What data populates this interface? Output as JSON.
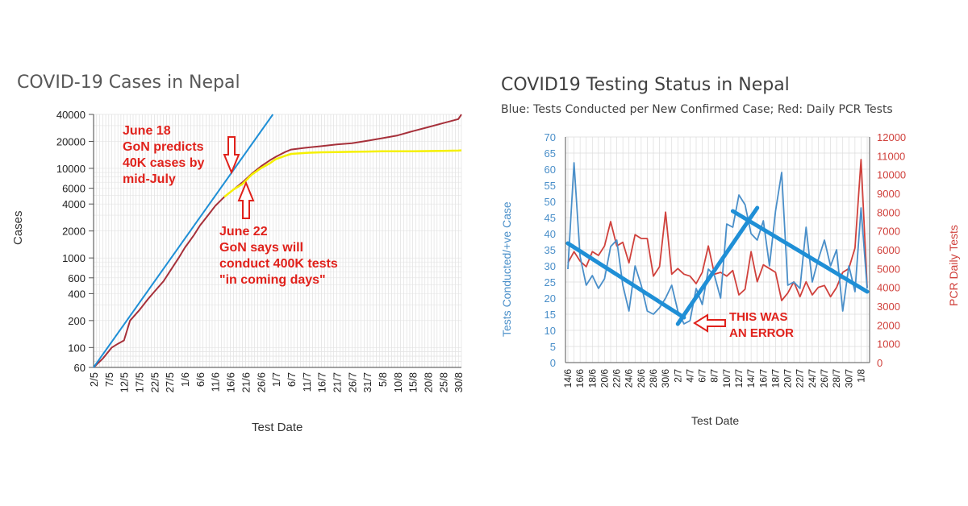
{
  "chart_data": [
    {
      "type": "line",
      "title": "COVID-19 Cases in Nepal",
      "xlabel": "Test Date",
      "ylabel": "Cases",
      "y_scale": "log",
      "ylim": [
        60,
        40000
      ],
      "grid": true,
      "y_ticks": [
        60,
        100,
        200,
        400,
        600,
        1000,
        2000,
        4000,
        6000,
        10000,
        20000,
        40000
      ],
      "x_ticks": [
        "2/5",
        "7/5",
        "12/5",
        "17/5",
        "22/5",
        "27/5",
        "1/6",
        "6/6",
        "11/6",
        "16/6",
        "21/6",
        "26/6",
        "1/7",
        "6/7",
        "11/7",
        "16/7",
        "21/7",
        "26/7",
        "31/7",
        "5/8",
        "10/8",
        "15/8",
        "20/8",
        "25/8",
        "30/8"
      ],
      "series": [
        {
          "color": "#a6303a",
          "x": [
            "2/5",
            "5/5",
            "8/5",
            "10/5",
            "12/5",
            "14/5",
            "17/5",
            "20/5",
            "22/5",
            "25/5",
            "27/5",
            "30/5",
            "1/6",
            "4/6",
            "6/6",
            "9/6",
            "11/6",
            "14/6",
            "17/6",
            "20/6",
            "23/6",
            "26/6",
            "29/6",
            "1/7",
            "4/7",
            "6/7",
            "11/7",
            "16/7",
            "21/7",
            "26/7",
            "31/7",
            "5/8",
            "10/8",
            "15/8",
            "20/8",
            "25/8",
            "30/8",
            "31/8"
          ],
          "values": [
            60,
            75,
            100,
            110,
            120,
            200,
            260,
            350,
            420,
            550,
            700,
            1000,
            1300,
            1800,
            2300,
            3100,
            3800,
            4800,
            5800,
            7000,
            8700,
            10500,
            12300,
            13500,
            15200,
            16200,
            17000,
            17700,
            18500,
            19100,
            20300,
            21700,
            23300,
            26000,
            28800,
            32000,
            35500,
            40000
          ]
        },
        {
          "color": "#f5f000",
          "x": [
            "14/6",
            "17/6",
            "20/6",
            "23/6",
            "26/6",
            "29/6",
            "1/7",
            "4/7",
            "6/7",
            "11/7",
            "16/7",
            "21/7",
            "26/7",
            "31/7",
            "5/8",
            "10/8",
            "15/8",
            "20/8",
            "25/8",
            "30/8",
            "31/8"
          ],
          "values": [
            4800,
            5800,
            6700,
            8500,
            10000,
            11400,
            12700,
            13800,
            14500,
            14900,
            15100,
            15200,
            15300,
            15400,
            15500,
            15500,
            15500,
            15600,
            15700,
            15800,
            15900
          ]
        },
        {
          "color": "#1f8fd6",
          "x": [
            "2/5",
            "30/6"
          ],
          "values": [
            60,
            40000
          ]
        }
      ],
      "annotations": [
        {
          "lines": [
            "June 18",
            "GoN predicts",
            "40K cases by",
            "mid-July"
          ]
        },
        {
          "lines": [
            "June 22",
            "GoN says will",
            "conduct 400K tests",
            "\"in coming days\""
          ]
        }
      ]
    },
    {
      "type": "line",
      "title": "COVID19 Testing Status in Nepal",
      "subtitle": "Blue: Tests Conducted per New Confirmed Case; Red: Daily PCR Tests",
      "xlabel": "Test Date",
      "ylabel": "Tests Conducted/+ve Case",
      "y2label": "PCR Daily Tests",
      "ylim": [
        0,
        70
      ],
      "y2lim": [
        0,
        12000
      ],
      "y_ticks": [
        0,
        5,
        10,
        15,
        20,
        25,
        30,
        35,
        40,
        45,
        50,
        55,
        60,
        65,
        70
      ],
      "y2_ticks": [
        0,
        1000,
        2000,
        3000,
        4000,
        5000,
        6000,
        7000,
        8000,
        9000,
        10000,
        11000,
        12000
      ],
      "x_ticks": [
        "14/6",
        "16/6",
        "18/6",
        "20/6",
        "22/6",
        "24/6",
        "26/6",
        "28/6",
        "30/6",
        "2/7",
        "4/7",
        "6/7",
        "8/7",
        "10/7",
        "12/7",
        "14/7",
        "16/7",
        "18/7",
        "20/7",
        "22/7",
        "24/7",
        "26/7",
        "28/7",
        "30/7",
        "1/8"
      ],
      "series": [
        {
          "name": "Tests Conducted per New Confirmed Case",
          "color": "#4a8fc9",
          "axis": "left",
          "values": [
            29,
            62,
            33,
            24,
            27,
            23,
            26,
            36,
            38,
            24,
            16,
            30,
            24,
            16,
            15,
            17,
            20,
            24,
            16,
            12,
            13,
            23,
            18,
            29,
            27,
            20,
            43,
            42,
            52,
            49,
            40,
            38,
            44,
            30,
            47,
            59,
            24,
            25,
            23,
            42,
            25,
            32,
            38,
            30,
            35,
            16,
            30,
            22,
            48,
            23
          ]
        },
        {
          "name": "Daily PCR Tests",
          "color": "#d0413c",
          "axis": "right",
          "values": [
            5300,
            5900,
            5400,
            5100,
            5900,
            5700,
            6200,
            7500,
            6200,
            6400,
            5300,
            6800,
            6600,
            6600,
            4600,
            5100,
            8000,
            4700,
            5000,
            4700,
            4600,
            4200,
            4800,
            6200,
            4700,
            4800,
            4600,
            4900,
            3600,
            3900,
            5900,
            4300,
            5200,
            5000,
            4800,
            3300,
            3700,
            4300,
            3500,
            4300,
            3600,
            4000,
            4100,
            3500,
            4000,
            4800,
            5000,
            6100,
            10800,
            4000
          ]
        },
        {
          "color": "#1f8fd6",
          "axis": "left",
          "x_index": [
            0,
            19
          ],
          "values": [
            37,
            14
          ]
        },
        {
          "color": "#1f8fd6",
          "axis": "left",
          "x_index": [
            18,
            31
          ],
          "values": [
            12,
            48
          ]
        },
        {
          "color": "#1f8fd6",
          "axis": "left",
          "x_index": [
            27,
            49
          ],
          "values": [
            47,
            22
          ]
        }
      ],
      "annotations": [
        {
          "lines": [
            "THIS WAS",
            "AN ERROR"
          ]
        }
      ]
    }
  ]
}
